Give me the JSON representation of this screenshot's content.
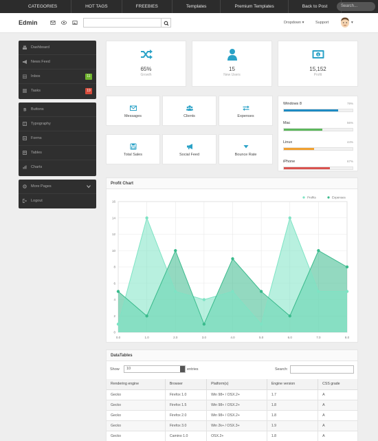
{
  "topnav": {
    "items": [
      "CATEGORIES",
      "HOT TAGS",
      "FREEBIES",
      "Templates",
      "Premium Templates",
      "Back to Post"
    ],
    "search_placeholder": "Search..."
  },
  "header": {
    "brand": "Edmin",
    "icons": [
      "envelope-icon",
      "eye-icon",
      "image-icon"
    ],
    "search_value": "",
    "dropdown_label": "Dropdown",
    "support_label": "Support"
  },
  "sidebar": {
    "group1": [
      {
        "label": "Dashboard",
        "icon": "dashboard-icon"
      },
      {
        "label": "News Feed",
        "icon": "bullhorn-icon"
      },
      {
        "label": "Inbox",
        "icon": "inbox-icon",
        "badge": "11",
        "badge_color": "#6fb42c"
      },
      {
        "label": "Tasks",
        "icon": "tasks-icon",
        "badge": "19",
        "badge_color": "#d64b3b"
      }
    ],
    "group2": [
      {
        "label": "Buttons",
        "icon": "bold-icon"
      },
      {
        "label": "Typography",
        "icon": "book-icon"
      },
      {
        "label": "Forms",
        "icon": "form-icon"
      },
      {
        "label": "Tables",
        "icon": "table-icon"
      },
      {
        "label": "Charts",
        "icon": "chart-icon"
      }
    ],
    "group3": [
      {
        "label": "More Pages",
        "icon": "cog-icon"
      },
      {
        "label": "Logout",
        "icon": "signout-icon"
      }
    ]
  },
  "stats": [
    {
      "value": "65%",
      "label": "Growth",
      "icon": "shuffle-icon"
    },
    {
      "value": "15",
      "label": "New Users",
      "icon": "user-icon"
    },
    {
      "value": "15,152",
      "label": "Profit",
      "icon": "money-icon"
    }
  ],
  "shortcuts": [
    {
      "label": "Messages",
      "icon": "envelope-icon"
    },
    {
      "label": "Clients",
      "icon": "group-icon"
    },
    {
      "label": "Expenses",
      "icon": "exchange-icon"
    },
    {
      "label": "Total Sales",
      "icon": "save-icon"
    },
    {
      "label": "Social Feed",
      "icon": "bullhorn-icon"
    },
    {
      "label": "Bounce Rate",
      "icon": "sort-down-icon"
    }
  ],
  "progress": [
    {
      "name": "Windows 8",
      "percent_text": "79%",
      "value": 0.79,
      "color": "#1e8bc3"
    },
    {
      "name": "Mac",
      "percent_text": "56%",
      "value": 0.56,
      "color": "#5cb85c"
    },
    {
      "name": "Linux",
      "percent_text": "44%",
      "value": 0.44,
      "color": "#f0a030"
    },
    {
      "name": "iPhone",
      "percent_text": "67%",
      "value": 0.67,
      "color": "#d9534f"
    }
  ],
  "chart_panel_title": "Profit Chart",
  "chart_data": {
    "type": "area",
    "x": [
      0.0,
      1.0,
      2.0,
      3.0,
      4.0,
      5.0,
      6.0,
      7.0,
      8.0
    ],
    "x_tick_labels": [
      "0.0",
      "1.0",
      "2.0",
      "3.0",
      "4.0",
      "5.0",
      "6.0",
      "7.0",
      "8.0"
    ],
    "y_tick_labels": [
      "0",
      "2",
      "4",
      "6",
      "8",
      "10",
      "12",
      "14",
      "16"
    ],
    "ylim": [
      0,
      16
    ],
    "xlim": [
      0,
      8
    ],
    "grid": true,
    "legend_position": "top-right",
    "series": [
      {
        "name": "Profits",
        "values": [
          1,
          14,
          5,
          4,
          5,
          1,
          14,
          5,
          5
        ],
        "color": "#7ee3c4"
      },
      {
        "name": "Expenses",
        "values": [
          5,
          2,
          10,
          1,
          9,
          5,
          2,
          10,
          8
        ],
        "color": "#3aba8c"
      }
    ]
  },
  "datatable": {
    "title": "DataTables",
    "show_label": "Show",
    "show_value": "10",
    "entries_label": "entries",
    "search_label": "Search:",
    "columns": [
      "Rendering engine",
      "Browser",
      "Platform(s)",
      "Engine version",
      "CSS grade"
    ],
    "rows": [
      [
        "Gecko",
        "Firefox 1.0",
        "Win 98+ / OSX.2+",
        "1.7",
        "A"
      ],
      [
        "Gecko",
        "Firefox 1.5",
        "Win 98+ / OSX.2+",
        "1.8",
        "A"
      ],
      [
        "Gecko",
        "Firefox 2.0",
        "Win 98+ / OSX.2+",
        "1.8",
        "A"
      ],
      [
        "Gecko",
        "Firefox 3.0",
        "Win 2k+ / OSX.3+",
        "1.9",
        "A"
      ],
      [
        "Gecko",
        "Camino 1.0",
        "OSX.2+",
        "1.8",
        "A"
      ]
    ]
  }
}
